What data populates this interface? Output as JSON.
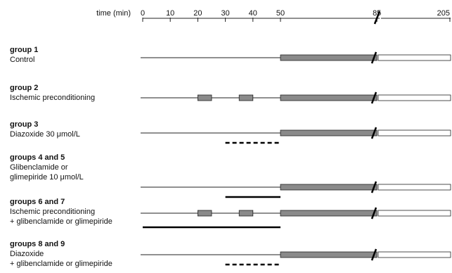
{
  "axis": {
    "label": "time (min)",
    "ticks": [
      {
        "label": "0",
        "value": 0
      },
      {
        "label": "10",
        "value": 10
      },
      {
        "label": "20",
        "value": 20
      },
      {
        "label": "30",
        "value": 30
      },
      {
        "label": "40",
        "value": 40
      },
      {
        "label": "50",
        "value": 50
      },
      {
        "label": "85",
        "value": 85
      },
      {
        "label": "205",
        "value": 205
      }
    ],
    "break": true
  },
  "colors": {
    "ischemia": "#8a8a8a",
    "reperfusion": "#ffffff",
    "outline": "#222222"
  },
  "groups": [
    {
      "title": "group 1",
      "lines": [
        "Control"
      ],
      "preconditioning_ischemia": [],
      "drug_dashed": null,
      "drug_solid": null
    },
    {
      "title": "group 2",
      "lines": [
        "Ischemic preconditioning"
      ],
      "preconditioning_ischemia": [
        [
          20,
          25
        ],
        [
          35,
          40
        ]
      ],
      "drug_dashed": null,
      "drug_solid": null
    },
    {
      "title": "group 3",
      "lines": [
        "Diazoxide 30 μmol/L"
      ],
      "preconditioning_ischemia": [],
      "drug_dashed": [
        30,
        50
      ],
      "drug_solid": null
    },
    {
      "title": "groups 4 and 5",
      "lines": [
        "Glibenclamide or",
        "glimepiride 10 μmol/L"
      ],
      "preconditioning_ischemia": [],
      "drug_dashed": null,
      "drug_solid": [
        30,
        50
      ]
    },
    {
      "title": "groups 6 and 7",
      "lines": [
        "Ischemic preconditioning",
        "+ glibenclamide or glimepiride"
      ],
      "preconditioning_ischemia": [
        [
          20,
          25
        ],
        [
          35,
          40
        ]
      ],
      "drug_dashed": null,
      "drug_solid": [
        0,
        50
      ]
    },
    {
      "title": "groups 8 and 9",
      "lines": [
        "Diazoxide",
        "+ glibenclamide or glimepiride"
      ],
      "preconditioning_ischemia": [],
      "drug_dashed": [
        30,
        50
      ],
      "drug_solid": null
    }
  ],
  "main_ischemia": [
    50,
    85
  ],
  "reperfusion": [
    85,
    205
  ]
}
